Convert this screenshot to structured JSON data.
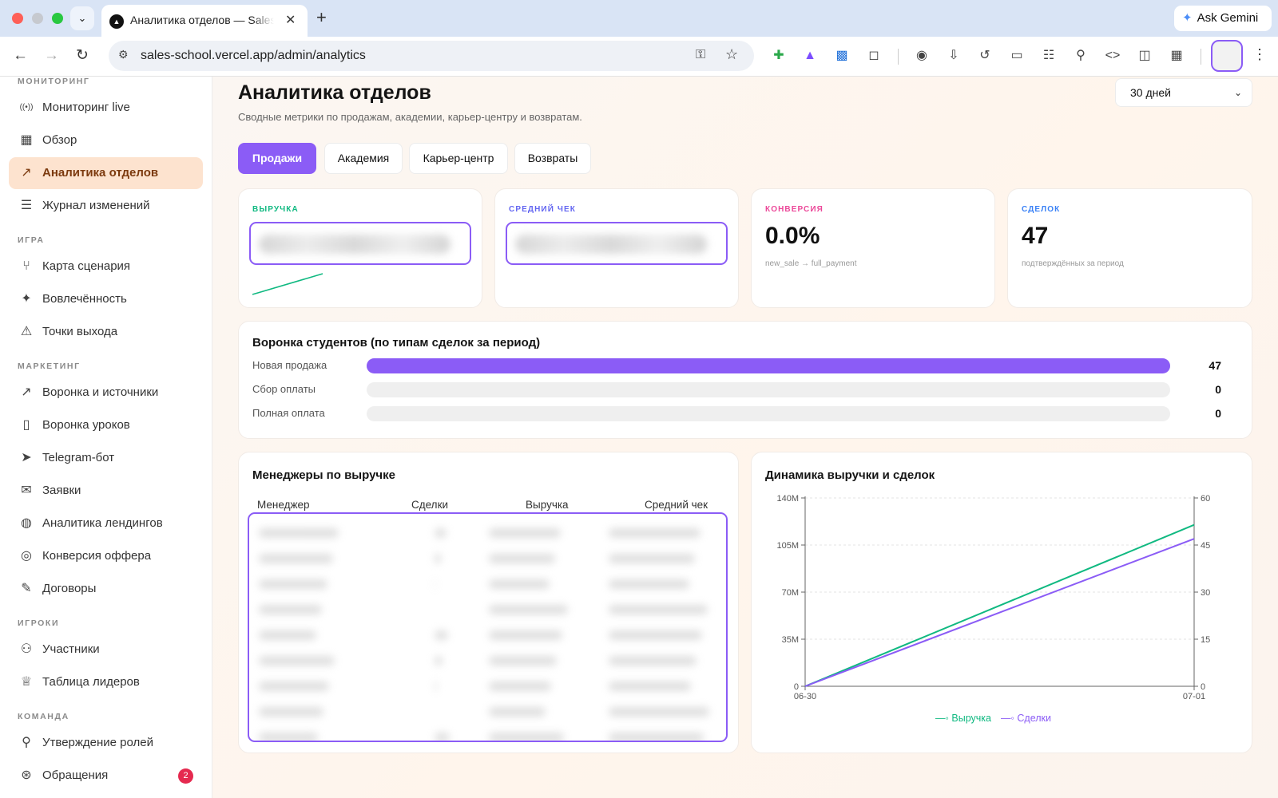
{
  "browser": {
    "tab_title": "Аналитика отделов — Sales School",
    "url": "sales-school.vercel.app/admin/analytics",
    "ask_gemini": "Ask Gemini"
  },
  "sidebar": {
    "sections": [
      {
        "title": "МОНИТОРИНГ",
        "items": [
          {
            "label": "Мониторинг live",
            "icon": "live-icon"
          },
          {
            "label": "Обзор",
            "icon": "dashboard-icon"
          },
          {
            "label": "Аналитика отделов",
            "icon": "trend-icon",
            "active": true
          },
          {
            "label": "Журнал изменений",
            "icon": "log-icon"
          }
        ]
      },
      {
        "title": "ИГРА",
        "items": [
          {
            "label": "Карта сценария",
            "icon": "branch-icon"
          },
          {
            "label": "Вовлечённость",
            "icon": "sparkle-icon"
          },
          {
            "label": "Точки выхода",
            "icon": "warning-icon"
          }
        ]
      },
      {
        "title": "МАРКЕТИНГ",
        "items": [
          {
            "label": "Воронка и источники",
            "icon": "trend-icon"
          },
          {
            "label": "Воронка уроков",
            "icon": "book-icon"
          },
          {
            "label": "Telegram-бот",
            "icon": "send-icon"
          },
          {
            "label": "Заявки",
            "icon": "mail-icon"
          },
          {
            "label": "Аналитика лендингов",
            "icon": "globe-icon"
          },
          {
            "label": "Конверсия оффера",
            "icon": "target-icon"
          },
          {
            "label": "Договоры",
            "icon": "contract-icon"
          }
        ]
      },
      {
        "title": "ИГРОКИ",
        "items": [
          {
            "label": "Участники",
            "icon": "users-icon"
          },
          {
            "label": "Таблица лидеров",
            "icon": "trophy-icon"
          }
        ]
      },
      {
        "title": "КОМАНДА",
        "items": [
          {
            "label": "Утверждение ролей",
            "icon": "user-check-icon"
          },
          {
            "label": "Обращения",
            "icon": "lifebuoy-icon",
            "badge": "2"
          }
        ]
      }
    ]
  },
  "header": {
    "title": "Аналитика отделов",
    "subtitle": "Сводные метрики по продажам, академии, карьер-центру и возвратам.",
    "period": "30 дней"
  },
  "tabs": [
    {
      "label": "Продажи",
      "active": true
    },
    {
      "label": "Академия"
    },
    {
      "label": "Карьер-центр"
    },
    {
      "label": "Возвраты"
    }
  ],
  "kpis": [
    {
      "label": "ВЫРУЧКА",
      "value": "",
      "redacted": true,
      "color": "#10b981"
    },
    {
      "label": "СРЕДНИЙ ЧЕК",
      "value": "",
      "redacted": true,
      "color": "#6366f1"
    },
    {
      "label": "КОНВЕРСИЯ",
      "value": "0.0%",
      "note": "new_sale → full_payment",
      "color": "#ec4899"
    },
    {
      "label": "СДЕЛОК",
      "value": "47",
      "note": "подтверждённых за период",
      "color": "#3b82f6"
    }
  ],
  "funnel": {
    "title": "Воронка студентов (по типам сделок за период)",
    "rows": [
      {
        "label": "Новая продажа",
        "value": 47
      },
      {
        "label": "Сбор оплаты",
        "value": 0
      },
      {
        "label": "Полная оплата",
        "value": 0
      }
    ],
    "max": 47
  },
  "managers": {
    "title": "Менеджеры по выручке",
    "columns": [
      "Менеджер",
      "Сделки",
      "Выручка",
      "Средний чек"
    ],
    "redacted": true
  },
  "chart_data": {
    "type": "line",
    "title": "Динамика выручки и сделок",
    "x": [
      "06-30",
      "07-01"
    ],
    "series": [
      {
        "name": "Выручка",
        "axis": "left",
        "values": [
          0,
          120000000
        ],
        "color": "#10b981"
      },
      {
        "name": "Сделки",
        "axis": "right",
        "values": [
          0,
          47
        ],
        "color": "#8b5cf6"
      }
    ],
    "y_left": {
      "ticks": [
        "0",
        "35M",
        "70M",
        "105M",
        "140M"
      ],
      "tick_values": [
        0,
        35000000,
        70000000,
        105000000,
        140000000
      ],
      "ylim": [
        0,
        140000000
      ]
    },
    "y_right": {
      "ticks": [
        "0",
        "15",
        "30",
        "45",
        "60"
      ],
      "tick_values": [
        0,
        15,
        30,
        45,
        60
      ],
      "ylim": [
        0,
        60
      ]
    },
    "grid": true,
    "legend": "bottom"
  }
}
